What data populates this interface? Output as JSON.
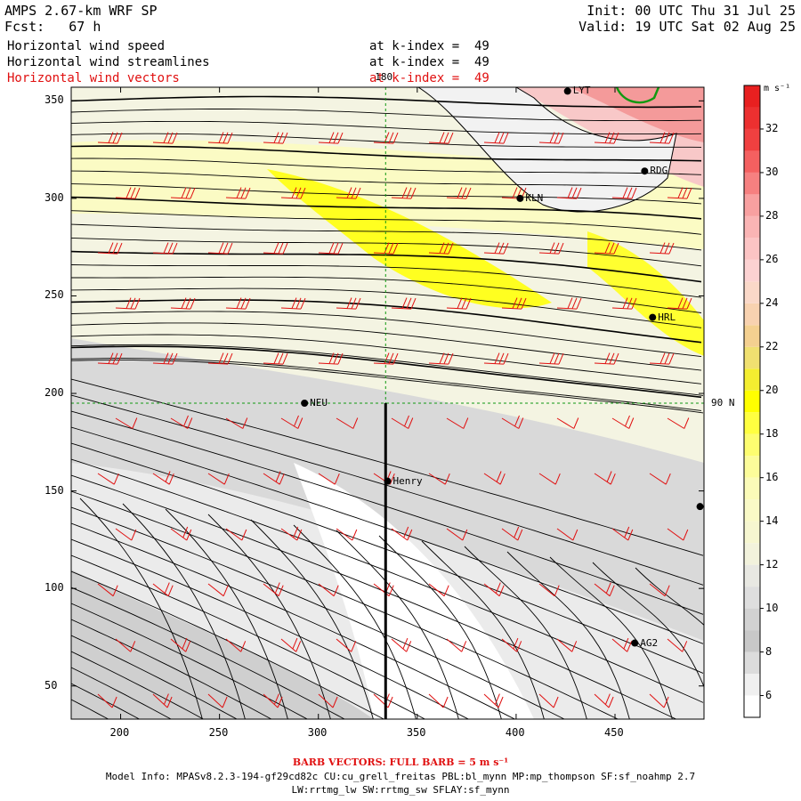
{
  "header": {
    "model": "AMPS 2.67-km WRF SP",
    "forecast": "Fcst:   67 h",
    "init": "Init: 00 UTC Thu 31 Jul 25",
    "valid": "Valid: 19 UTC Sat 02 Aug 25",
    "fields": [
      {
        "name": "Horizontal wind speed",
        "level": "at k-index =  49",
        "color": "#000000"
      },
      {
        "name": "Horizontal wind streamlines",
        "level": "at k-index =  49",
        "color": "#000000"
      },
      {
        "name": "Horizontal wind vectors",
        "level": "at k-index =  49",
        "color": "#e01010"
      }
    ]
  },
  "chart_data": {
    "type": "heatmap",
    "xlim": [
      175,
      495
    ],
    "ylim": [
      33,
      357
    ],
    "x_ticks": [
      200,
      250,
      300,
      350,
      400,
      450
    ],
    "y_ticks": [
      50,
      100,
      150,
      200,
      250,
      300,
      350
    ],
    "grid_labels": {
      "longitude": "180",
      "latitude": "90 N"
    },
    "reference_lines": {
      "longitude_x": 334,
      "latitude_y": 195
    },
    "stations": [
      {
        "name": "LYT",
        "x": 426,
        "y": 355
      },
      {
        "name": "RDG",
        "x": 465,
        "y": 314
      },
      {
        "name": "KLN",
        "x": 402,
        "y": 300
      },
      {
        "name": "HRL",
        "x": 469,
        "y": 239
      },
      {
        "name": "NEU",
        "x": 293,
        "y": 195
      },
      {
        "name": "Henry",
        "x": 335,
        "y": 155
      },
      {
        "name": "AG2",
        "x": 460,
        "y": 72
      },
      {
        "name": "",
        "x": 493,
        "y": 142
      }
    ],
    "colorbar": {
      "units": "m s⁻¹",
      "ticks": [
        6,
        8,
        10,
        12,
        14,
        16,
        18,
        20,
        22,
        24,
        26,
        28,
        30,
        32
      ],
      "levels": [
        5,
        6,
        7,
        8,
        9,
        10,
        11,
        12,
        13,
        14,
        15,
        16,
        17,
        18,
        19,
        20,
        21,
        22,
        23,
        24,
        25,
        26,
        27,
        28,
        29,
        30,
        31,
        32,
        33,
        34
      ],
      "colors": [
        "#ffffff",
        "#f0f0f0",
        "#dcdcdc",
        "#c8c8c8",
        "#d2d2d2",
        "#dedede",
        "#e8e8e2",
        "#f2f2dc",
        "#f6f6d0",
        "#f9f9c6",
        "#fbfbb8",
        "#fcfc9a",
        "#fdfd70",
        "#ffff40",
        "#ffff00",
        "#f4ee30",
        "#f0e070",
        "#f4d090",
        "#f8d2b0",
        "#fad8c8",
        "#fcd2d2",
        "#fcc4c4",
        "#fab4b4",
        "#f8a0a0",
        "#f68080",
        "#f46060",
        "#f04040",
        "#ec3030",
        "#e82020"
      ]
    }
  },
  "footer": {
    "barb": "BARB VECTORS:  FULL BARB = 5 m s⁻¹",
    "model_info": "Model Info: MPASv8.2.3-194-gf29cd82c CU:cu_grell_freitas PBL:bl_mynn MP:mp_thompson SF:sf_noahmp 2.7",
    "model_info2": "LW:rrtmg_lw SW:rrtmg_sw SFLAY:sf_mynn"
  }
}
